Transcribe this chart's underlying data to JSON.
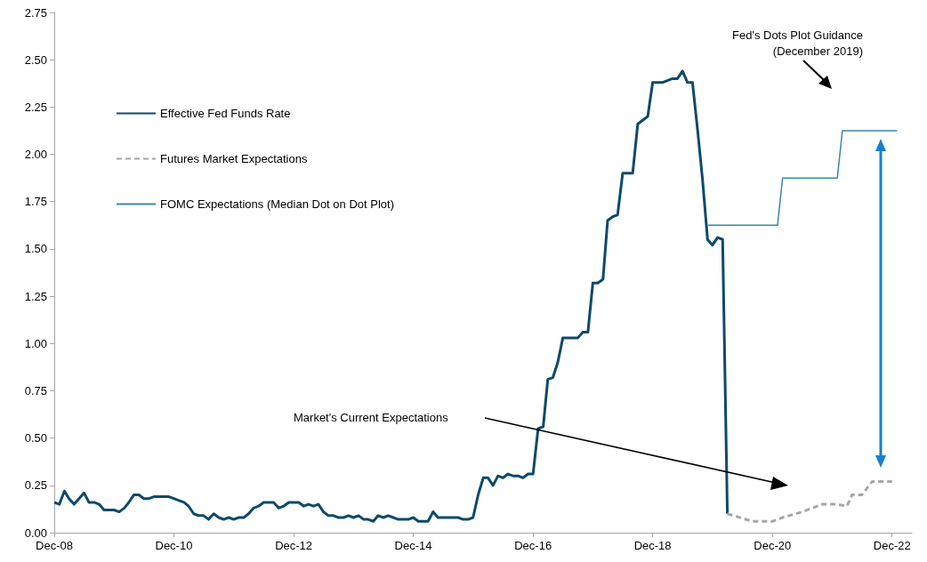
{
  "chart_data": {
    "type": "line",
    "annotations": [
      "Market's Current Expectations",
      "Fed's Dots Plot Guidance\n(December 2019)"
    ],
    "xlim": [
      "2008-12",
      "2023-04"
    ],
    "xticks": [
      {
        "value": "2008-12",
        "label": "Dec-08"
      },
      {
        "value": "2010-12",
        "label": "Dec-10"
      },
      {
        "value": "2012-12",
        "label": "Dec-12"
      },
      {
        "value": "2014-12",
        "label": "Dec-14"
      },
      {
        "value": "2016-12",
        "label": "Dec-16"
      },
      {
        "value": "2018-12",
        "label": "Dec-18"
      },
      {
        "value": "2020-12",
        "label": "Dec-20"
      },
      {
        "value": "2022-12",
        "label": "Dec-22"
      }
    ],
    "ylim": [
      0,
      2.75
    ],
    "yticks": [
      {
        "value": 0,
        "label": "0.00"
      },
      {
        "value": 0.25,
        "label": "0.25"
      },
      {
        "value": 0.5,
        "label": "0.50"
      },
      {
        "value": 0.75,
        "label": "0.75"
      },
      {
        "value": 1,
        "label": "1.00"
      },
      {
        "value": 1.25,
        "label": "1.25"
      },
      {
        "value": 1.5,
        "label": "1.50"
      },
      {
        "value": 1.75,
        "label": "1.75"
      },
      {
        "value": 2,
        "label": "2.00"
      },
      {
        "value": 2.25,
        "label": "2.25"
      },
      {
        "value": 2.5,
        "label": "2.50"
      },
      {
        "value": 2.75,
        "label": "2.75"
      }
    ],
    "grid": false,
    "legend": "top left",
    "marker": "none",
    "series": [
      {
        "name": "Effective Fed Funds Rate",
        "color": "#0d4a6b",
        "line_style": "solid",
        "x": [
          "2008-12",
          "2009-01",
          "2009-02",
          "2009-03",
          "2009-04",
          "2009-05",
          "2009-06",
          "2009-07",
          "2009-08",
          "2009-09",
          "2009-10",
          "2009-11",
          "2009-12",
          "2010-01",
          "2010-02",
          "2010-03",
          "2010-04",
          "2010-05",
          "2010-06",
          "2010-07",
          "2010-08",
          "2010-09",
          "2010-10",
          "2010-11",
          "2010-12",
          "2011-01",
          "2011-02",
          "2011-03",
          "2011-04",
          "2011-05",
          "2011-06",
          "2011-07",
          "2011-08",
          "2011-09",
          "2011-10",
          "2011-11",
          "2011-12",
          "2012-01",
          "2012-02",
          "2012-03",
          "2012-04",
          "2012-05",
          "2012-06",
          "2012-07",
          "2012-08",
          "2012-09",
          "2012-10",
          "2012-11",
          "2012-12",
          "2013-01",
          "2013-02",
          "2013-03",
          "2013-04",
          "2013-05",
          "2013-06",
          "2013-07",
          "2013-08",
          "2013-09",
          "2013-10",
          "2013-11",
          "2013-12",
          "2014-01",
          "2014-02",
          "2014-03",
          "2014-04",
          "2014-05",
          "2014-06",
          "2014-07",
          "2014-08",
          "2014-09",
          "2014-10",
          "2014-11",
          "2014-12",
          "2015-01",
          "2015-02",
          "2015-03",
          "2015-04",
          "2015-05",
          "2015-06",
          "2015-07",
          "2015-08",
          "2015-09",
          "2015-10",
          "2015-11",
          "2015-12",
          "2016-01",
          "2016-02",
          "2016-03",
          "2016-04",
          "2016-05",
          "2016-06",
          "2016-07",
          "2016-08",
          "2016-09",
          "2016-10",
          "2016-11",
          "2016-12",
          "2017-01",
          "2017-02",
          "2017-03",
          "2017-04",
          "2017-05",
          "2017-06",
          "2017-07",
          "2017-08",
          "2017-09",
          "2017-10",
          "2017-11",
          "2017-12",
          "2018-01",
          "2018-02",
          "2018-03",
          "2018-04",
          "2018-05",
          "2018-06",
          "2018-07",
          "2018-08",
          "2018-09",
          "2018-10",
          "2018-11",
          "2018-12",
          "2019-01",
          "2019-02",
          "2019-03",
          "2019-04",
          "2019-05",
          "2019-06",
          "2019-07",
          "2019-08",
          "2019-09",
          "2019-10",
          "2019-11",
          "2019-12",
          "2020-01",
          "2020-02",
          "2020-03"
        ],
        "values": [
          0.16,
          0.15,
          0.22,
          0.18,
          0.15,
          0.18,
          0.21,
          0.16,
          0.16,
          0.15,
          0.12,
          0.12,
          0.12,
          0.11,
          0.13,
          0.16,
          0.2,
          0.2,
          0.18,
          0.18,
          0.19,
          0.19,
          0.19,
          0.19,
          0.18,
          0.17,
          0.16,
          0.14,
          0.1,
          0.09,
          0.09,
          0.07,
          0.1,
          0.08,
          0.07,
          0.08,
          0.07,
          0.08,
          0.08,
          0.1,
          0.13,
          0.14,
          0.16,
          0.16,
          0.16,
          0.13,
          0.14,
          0.16,
          0.16,
          0.16,
          0.14,
          0.15,
          0.14,
          0.15,
          0.11,
          0.09,
          0.09,
          0.08,
          0.08,
          0.09,
          0.08,
          0.09,
          0.07,
          0.07,
          0.06,
          0.09,
          0.08,
          0.09,
          0.08,
          0.07,
          0.07,
          0.07,
          0.08,
          0.06,
          0.06,
          0.06,
          0.11,
          0.08,
          0.08,
          0.08,
          0.08,
          0.08,
          0.07,
          0.07,
          0.08,
          0.2,
          0.29,
          0.29,
          0.25,
          0.3,
          0.29,
          0.31,
          0.3,
          0.3,
          0.29,
          0.31,
          0.31,
          0.55,
          0.56,
          0.81,
          0.82,
          0.9,
          1.03,
          1.03,
          1.03,
          1.03,
          1.06,
          1.06,
          1.32,
          1.32,
          1.34,
          1.65,
          1.67,
          1.68,
          1.9,
          1.9,
          1.9,
          2.16,
          2.18,
          2.2,
          2.38,
          2.38,
          2.38,
          2.39,
          2.4,
          2.4,
          2.44,
          2.38,
          2.38,
          2.13,
          1.87,
          1.55,
          1.52,
          1.56,
          1.55,
          0.1
        ]
      },
      {
        "name": "Futures Market Expectations",
        "color": "#a6a6a6",
        "line_style": "dashed",
        "x": [
          "2020-03",
          "2020-08",
          "2020-12",
          "2021-02",
          "2021-06",
          "2021-08",
          "2021-10",
          "2022-01",
          "2022-03",
          "2022-04",
          "2022-06",
          "2022-08",
          "2022-12"
        ],
        "values": [
          0.1,
          0.06,
          0.06,
          0.08,
          0.11,
          0.13,
          0.15,
          0.15,
          0.14,
          0.2,
          0.2,
          0.27,
          0.27
        ]
      },
      {
        "name": "FOMC Expectations (Median Dot on Dot Plot)",
        "color": "#3a87a8",
        "line_style": "solid",
        "x": [
          "2019-11",
          "2021-01",
          "2021-02",
          "2022-01",
          "2022-02",
          "2023-01"
        ],
        "values": [
          1.625,
          1.625,
          1.875,
          1.875,
          2.125,
          2.125
        ]
      }
    ]
  }
}
